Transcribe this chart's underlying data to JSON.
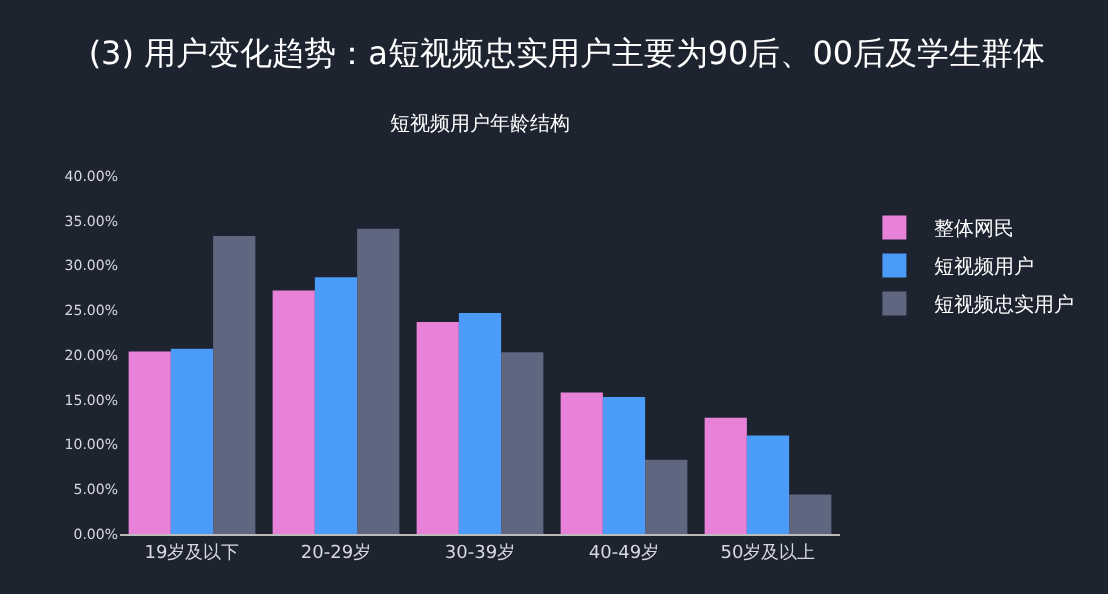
{
  "chart_data": {
    "type": "bar",
    "title": "(3) 用户变化趋势：a短视频忠实用户主要为90后、00后及学生群体",
    "subtitle": "短视频用户年龄结构",
    "categories": [
      "19岁及以下",
      "20-29岁",
      "30-39岁",
      "40-49岁",
      "50岁及以上"
    ],
    "series": [
      {
        "name": "整体网民",
        "color": "#e882d8",
        "values": [
          20.4,
          27.2,
          23.7,
          15.8,
          13.0
        ]
      },
      {
        "name": "短视频用户",
        "color": "#4a9cf8",
        "values": [
          20.7,
          28.7,
          24.7,
          15.3,
          11.0
        ]
      },
      {
        "name": "短视频忠实用户",
        "color": "#5f6680",
        "values": [
          33.3,
          34.1,
          20.3,
          8.3,
          4.4
        ]
      }
    ],
    "ylim": [
      0,
      40
    ],
    "yticks": [
      {
        "value": 0,
        "label": "0.00%"
      },
      {
        "value": 5,
        "label": "5.00%"
      },
      {
        "value": 10,
        "label": "10.00%"
      },
      {
        "value": 15,
        "label": "15.00%"
      },
      {
        "value": 20,
        "label": "20.00%"
      },
      {
        "value": 25,
        "label": "25.00%"
      },
      {
        "value": 30,
        "label": "30.00%"
      },
      {
        "value": 35,
        "label": "35.00%"
      },
      {
        "value": 40,
        "label": "40.00%"
      }
    ],
    "grid": false,
    "legend": "right"
  }
}
